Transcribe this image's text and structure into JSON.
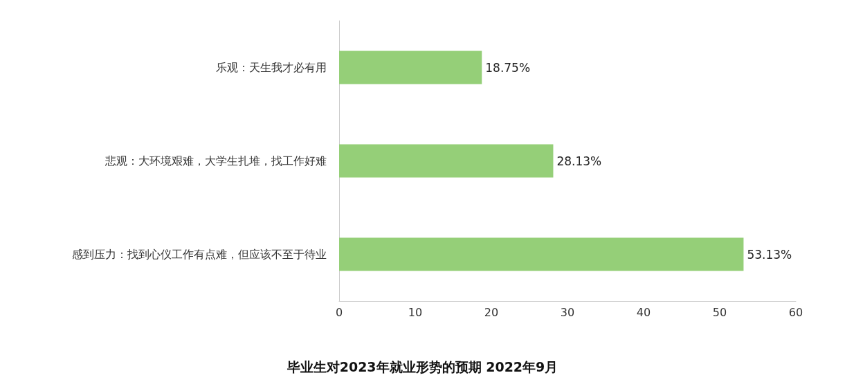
{
  "chart_data": {
    "type": "bar",
    "orientation": "horizontal",
    "title": "毕业生对2023年就业形势的预期 2022年9月",
    "categories": [
      "乐观：天生我才必有用",
      "悲观：大环境艰难，大学生扎堆，找工作好难",
      "感到压力：找到心仪工作有点难，但应该不至于待业"
    ],
    "values": [
      18.75,
      28.13,
      53.13
    ],
    "color": "#95cf78",
    "value_labels": [
      "18.75%",
      "28.13%",
      "53.13%"
    ],
    "xlim": [
      0,
      60
    ],
    "xticks": [
      0,
      10,
      20,
      30,
      40,
      50,
      60
    ],
    "grid": false
  }
}
